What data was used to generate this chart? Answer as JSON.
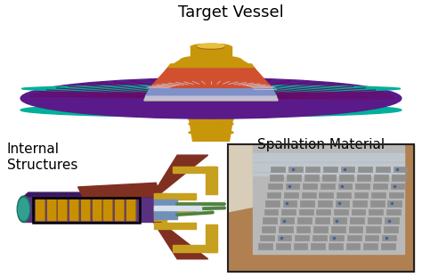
{
  "background_color": "#ffffff",
  "title_vessel": "Target Vessel",
  "title_internal": "Internal\nStructures",
  "title_spallation": "Spallation Material",
  "title_fontsize": 13,
  "label_fontsize": 11,
  "fig_width": 4.74,
  "fig_height": 3.11,
  "dpi": 100,
  "vessel": {
    "disk_purple": "#5a1a8a",
    "disk_rim_teal": "#00b09a",
    "spoke_dark": "#6a0860",
    "spoke_light": "#c86090",
    "center_gold": "#c8960a",
    "center_orange": "#d05030",
    "center_blue": "#8090c8",
    "center_silver": "#c0c0d0",
    "shaft_gold": "#c8960a"
  },
  "internal": {
    "body_purple": "#5a3080",
    "body_teal": "#207060",
    "tungsten_gold": "#c89000",
    "tungsten_dark": "#806000",
    "frame_yellow": "#c8a020",
    "wedge_red": "#803020",
    "wedge_blue": "#7090b8",
    "fins_green": "#508040",
    "box_outline": "#000000",
    "body_dark_purple": "#3a1860"
  },
  "spallation": {
    "photo_bg_wood": "#a07040",
    "photo_bg_left": "#c8b090",
    "blocks_silver": "#909090",
    "blocks_dark": "#606060",
    "frame_top": "#c0c8d0",
    "border": "#222222",
    "table_brown": "#b08050"
  },
  "text_color": "#000000"
}
